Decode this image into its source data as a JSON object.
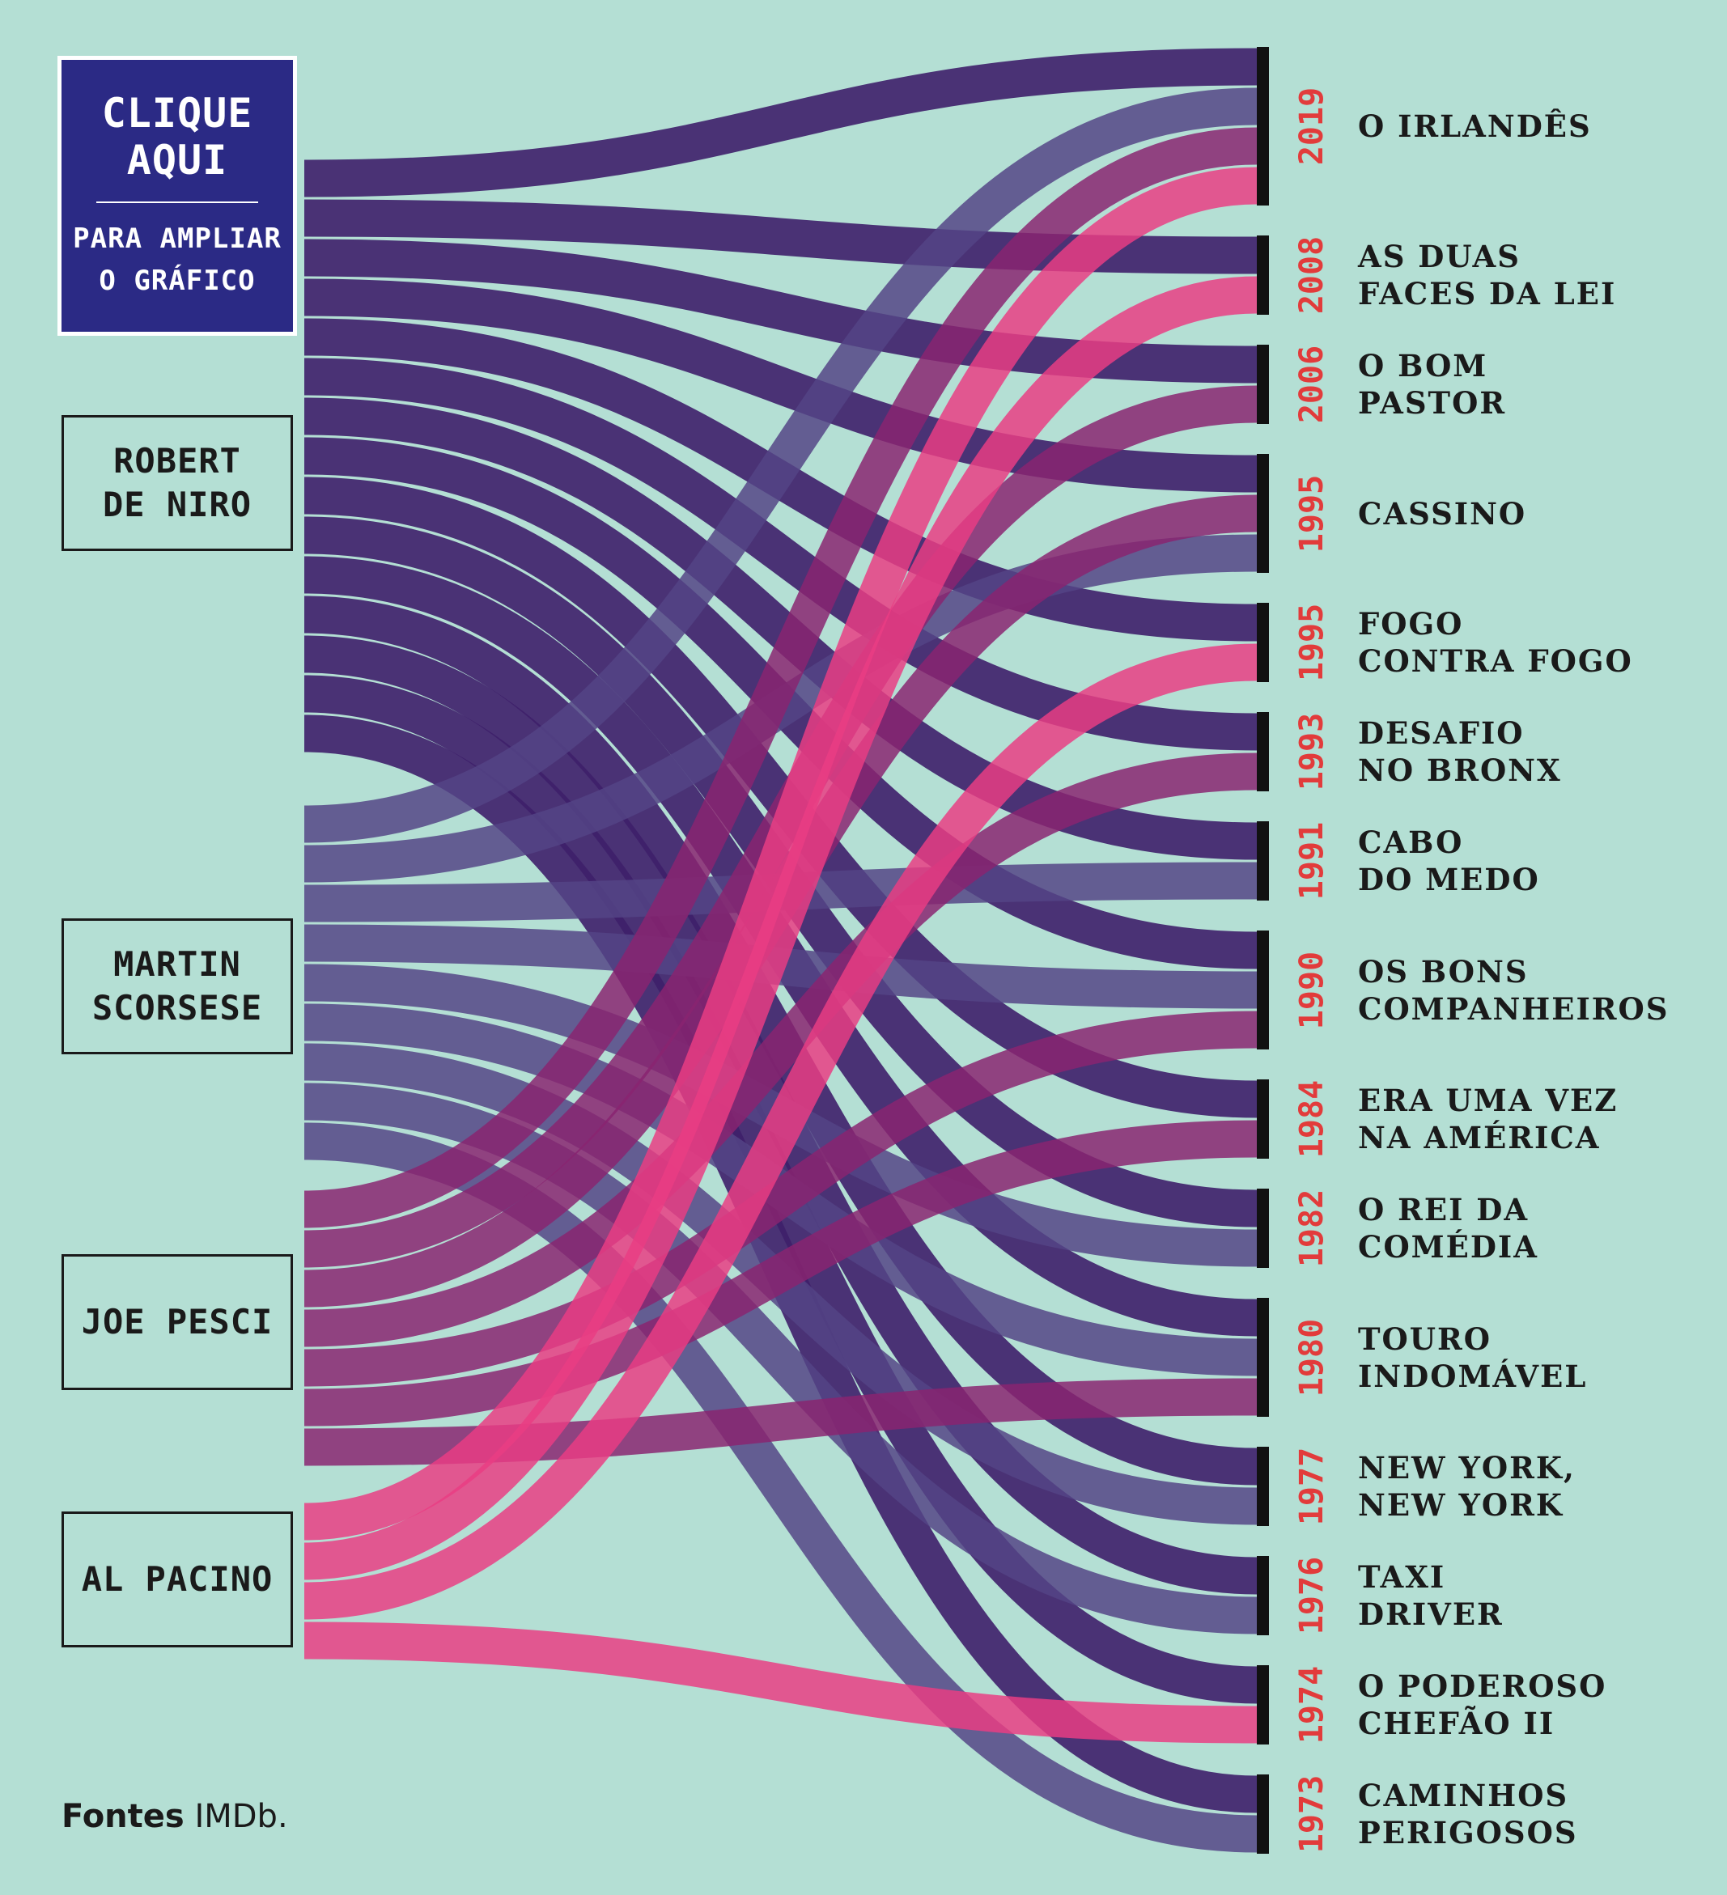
{
  "cta": {
    "title": "CLIQUE\nAQUI",
    "subtitle": "PARA AMPLIAR\nO GRÁFICO"
  },
  "colors": {
    "background": "#b4dfd4",
    "robert-de-niro": "#3e1f6a",
    "martin-scorsese": "#534485",
    "joe-pesci": "#892470",
    "al-pacino": "#ea3d83",
    "year": "#e23b3b"
  },
  "people": [
    {
      "id": "robert-de-niro",
      "label": "ROBERT\nDE NIRO"
    },
    {
      "id": "martin-scorsese",
      "label": "MARTIN\nSCORSESE"
    },
    {
      "id": "joe-pesci",
      "label": "JOE PESCI"
    },
    {
      "id": "al-pacino",
      "label": "AL PACINO"
    }
  ],
  "films": [
    {
      "id": "irishman",
      "year": "2019",
      "title": "O IRLANDÊS",
      "cast": [
        "robert-de-niro",
        "martin-scorsese",
        "joe-pesci",
        "al-pacino"
      ]
    },
    {
      "id": "righteous-kill",
      "year": "2008",
      "title": "AS DUAS\nFACES DA LEI",
      "cast": [
        "robert-de-niro",
        "al-pacino"
      ]
    },
    {
      "id": "good-shepherd",
      "year": "2006",
      "title": "O BOM\nPASTOR",
      "cast": [
        "robert-de-niro",
        "joe-pesci"
      ]
    },
    {
      "id": "casino",
      "year": "1995",
      "title": "CASSINO",
      "cast": [
        "robert-de-niro",
        "joe-pesci",
        "martin-scorsese"
      ]
    },
    {
      "id": "heat",
      "year": "1995",
      "title": "FOGO\nCONTRA FOGO",
      "cast": [
        "robert-de-niro",
        "al-pacino"
      ]
    },
    {
      "id": "bronx-tale",
      "year": "1993",
      "title": "DESAFIO\nNO BRONX",
      "cast": [
        "robert-de-niro",
        "joe-pesci"
      ]
    },
    {
      "id": "cape-fear",
      "year": "1991",
      "title": "CABO\nDO MEDO",
      "cast": [
        "robert-de-niro",
        "martin-scorsese"
      ]
    },
    {
      "id": "goodfellas",
      "year": "1990",
      "title": "OS BONS\nCOMPANHEIROS",
      "cast": [
        "robert-de-niro",
        "martin-scorsese",
        "joe-pesci"
      ]
    },
    {
      "id": "once-upon-america",
      "year": "1984",
      "title": "ERA UMA VEZ\nNA AMÉRICA",
      "cast": [
        "robert-de-niro",
        "joe-pesci"
      ]
    },
    {
      "id": "king-of-comedy",
      "year": "1982",
      "title": "O REI DA\nCOMÉDIA",
      "cast": [
        "robert-de-niro",
        "martin-scorsese"
      ]
    },
    {
      "id": "raging-bull",
      "year": "1980",
      "title": "TOURO\nINDOMÁVEL",
      "cast": [
        "robert-de-niro",
        "martin-scorsese",
        "joe-pesci"
      ]
    },
    {
      "id": "new-york-new-york",
      "year": "1977",
      "title": "NEW YORK,\nNEW YORK",
      "cast": [
        "robert-de-niro",
        "martin-scorsese"
      ]
    },
    {
      "id": "taxi-driver",
      "year": "1976",
      "title": "TAXI\nDRIVER",
      "cast": [
        "robert-de-niro",
        "martin-scorsese"
      ]
    },
    {
      "id": "godfather-ii",
      "year": "1974",
      "title": "O PODEROSO\nCHEFÃO II",
      "cast": [
        "robert-de-niro",
        "al-pacino"
      ]
    },
    {
      "id": "mean-streets",
      "year": "1973",
      "title": "CAMINHOS\nPERIGOSOS",
      "cast": [
        "robert-de-niro",
        "martin-scorsese"
      ]
    }
  ],
  "source": {
    "label": "Fontes",
    "value": "IMDb."
  }
}
